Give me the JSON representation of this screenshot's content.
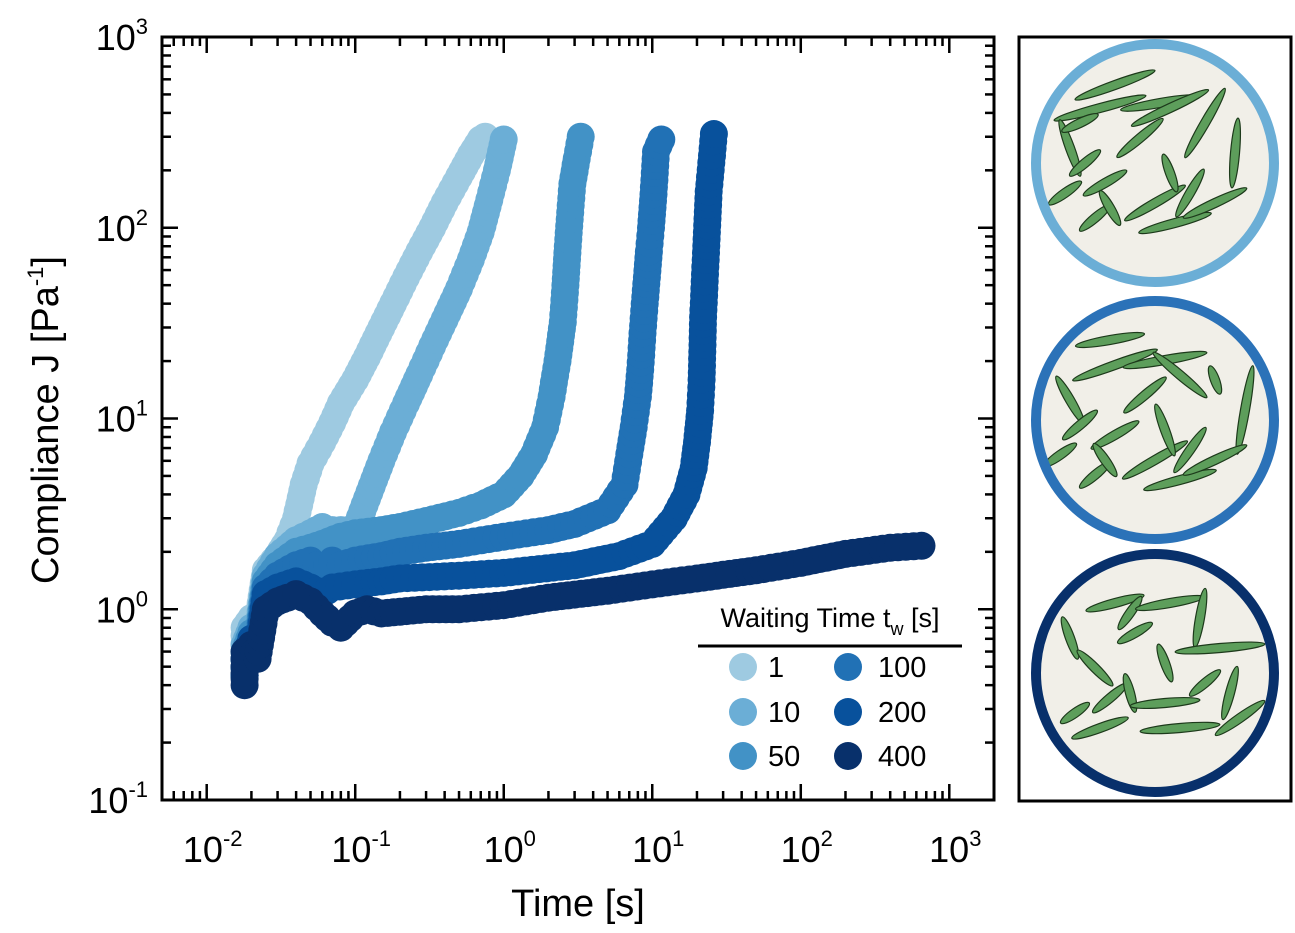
{
  "chart_data": {
    "type": "scatter",
    "xlabel": "Time [s]",
    "ylabel_main": "Compliance J [Pa",
    "ylabel_sup": "-1",
    "ylabel_close": "]",
    "xscale": "log",
    "yscale": "log",
    "xlim": [
      0.005,
      2000
    ],
    "ylim": [
      0.1,
      1000
    ],
    "x_ticks": [
      {
        "value": 0.01,
        "base": "10",
        "exp": "-2"
      },
      {
        "value": 0.1,
        "base": "10",
        "exp": "-1"
      },
      {
        "value": 1,
        "base": "10",
        "exp": "0"
      },
      {
        "value": 10,
        "base": "10",
        "exp": "1"
      },
      {
        "value": 100,
        "base": "10",
        "exp": "2"
      },
      {
        "value": 1000,
        "base": "10",
        "exp": "3"
      }
    ],
    "y_ticks": [
      {
        "value": 0.1,
        "base": "10",
        "exp": "-1"
      },
      {
        "value": 1,
        "base": "10",
        "exp": "0"
      },
      {
        "value": 10,
        "base": "10",
        "exp": "1"
      },
      {
        "value": 100,
        "base": "10",
        "exp": "2"
      },
      {
        "value": 1000,
        "base": "10",
        "exp": "3"
      }
    ],
    "legend": {
      "title_main": "Waiting Time t",
      "title_sub": "w",
      "title_end": " [s]",
      "position": "lower-right"
    },
    "series": [
      {
        "name": "1",
        "color": "#9ecae1",
        "points": [
          [
            0.018,
            0.45
          ],
          [
            0.018,
            0.6
          ],
          [
            0.018,
            0.8
          ],
          [
            0.02,
            0.9
          ],
          [
            0.022,
            0.85
          ],
          [
            0.025,
            1.6
          ],
          [
            0.03,
            1.9
          ],
          [
            0.035,
            2.3
          ],
          [
            0.04,
            3.0
          ],
          [
            0.045,
            4.5
          ],
          [
            0.05,
            5.8
          ],
          [
            0.06,
            7.5
          ],
          [
            0.07,
            9.5
          ],
          [
            0.08,
            12
          ],
          [
            0.1,
            16
          ],
          [
            0.12,
            21
          ],
          [
            0.15,
            30
          ],
          [
            0.18,
            40
          ],
          [
            0.22,
            55
          ],
          [
            0.27,
            75
          ],
          [
            0.33,
            100
          ],
          [
            0.4,
            135
          ],
          [
            0.5,
            185
          ],
          [
            0.6,
            240
          ],
          [
            0.7,
            290
          ],
          [
            0.75,
            300
          ]
        ]
      },
      {
        "name": "10",
        "color": "#6baed6",
        "points": [
          [
            0.018,
            0.45
          ],
          [
            0.018,
            0.65
          ],
          [
            0.02,
            0.8
          ],
          [
            0.022,
            0.75
          ],
          [
            0.025,
            1.5
          ],
          [
            0.03,
            1.9
          ],
          [
            0.035,
            2.1
          ],
          [
            0.04,
            2.3
          ],
          [
            0.05,
            2.5
          ],
          [
            0.06,
            2.7
          ],
          [
            0.07,
            2.6
          ],
          [
            0.08,
            2.6
          ],
          [
            0.1,
            2.6
          ],
          [
            0.12,
            3.8
          ],
          [
            0.15,
            6
          ],
          [
            0.18,
            8.5
          ],
          [
            0.22,
            12
          ],
          [
            0.27,
            17
          ],
          [
            0.33,
            24
          ],
          [
            0.4,
            33
          ],
          [
            0.5,
            48
          ],
          [
            0.6,
            68
          ],
          [
            0.7,
            95
          ],
          [
            0.8,
            140
          ],
          [
            0.9,
            200
          ],
          [
            1.0,
            290
          ]
        ]
      },
      {
        "name": "50",
        "color": "#4292c6",
        "points": [
          [
            0.018,
            0.45
          ],
          [
            0.018,
            0.6
          ],
          [
            0.02,
            0.75
          ],
          [
            0.022,
            0.7
          ],
          [
            0.025,
            1.4
          ],
          [
            0.03,
            1.7
          ],
          [
            0.04,
            2.0
          ],
          [
            0.05,
            2.1
          ],
          [
            0.06,
            2.2
          ],
          [
            0.08,
            2.4
          ],
          [
            0.1,
            2.5
          ],
          [
            0.15,
            2.6
          ],
          [
            0.2,
            2.7
          ],
          [
            0.3,
            2.9
          ],
          [
            0.5,
            3.2
          ],
          [
            0.7,
            3.5
          ],
          [
            1.0,
            4.0
          ],
          [
            1.3,
            5.0
          ],
          [
            1.6,
            6.5
          ],
          [
            1.9,
            9
          ],
          [
            2.1,
            13
          ],
          [
            2.3,
            20
          ],
          [
            2.5,
            32
          ],
          [
            2.6,
            50
          ],
          [
            2.7,
            80
          ],
          [
            2.8,
            120
          ],
          [
            2.9,
            170
          ],
          [
            3.1,
            230
          ],
          [
            3.3,
            300
          ]
        ]
      },
      {
        "name": "100",
        "color": "#2171b5",
        "points": [
          [
            0.018,
            0.45
          ],
          [
            0.018,
            0.55
          ],
          [
            0.02,
            0.7
          ],
          [
            0.022,
            0.65
          ],
          [
            0.025,
            1.3
          ],
          [
            0.03,
            1.5
          ],
          [
            0.04,
            1.7
          ],
          [
            0.05,
            1.8
          ],
          [
            0.06,
            1.6
          ],
          [
            0.07,
            1.8
          ],
          [
            0.08,
            1.7
          ],
          [
            0.1,
            1.8
          ],
          [
            0.15,
            1.9
          ],
          [
            0.2,
            2.0
          ],
          [
            0.3,
            2.1
          ],
          [
            0.5,
            2.2
          ],
          [
            1.0,
            2.4
          ],
          [
            2.0,
            2.6
          ],
          [
            3.0,
            2.8
          ],
          [
            5.0,
            3.3
          ],
          [
            6.5,
            4.5
          ],
          [
            7.0,
            6.5
          ],
          [
            7.5,
            9
          ],
          [
            8.0,
            13
          ],
          [
            8.3,
            18
          ],
          [
            8.6,
            28
          ],
          [
            8.9,
            40
          ],
          [
            9.2,
            55
          ],
          [
            9.5,
            75
          ],
          [
            9.8,
            100
          ],
          [
            10.2,
            150
          ],
          [
            10.6,
            250
          ],
          [
            11.5,
            290
          ]
        ]
      },
      {
        "name": "200",
        "color": "#08519c",
        "points": [
          [
            0.018,
            0.45
          ],
          [
            0.018,
            0.55
          ],
          [
            0.02,
            0.7
          ],
          [
            0.022,
            0.6
          ],
          [
            0.025,
            1.2
          ],
          [
            0.03,
            1.3
          ],
          [
            0.04,
            1.4
          ],
          [
            0.05,
            1.3
          ],
          [
            0.06,
            1.2
          ],
          [
            0.07,
            1.3
          ],
          [
            0.1,
            1.35
          ],
          [
            0.15,
            1.4
          ],
          [
            0.2,
            1.45
          ],
          [
            0.5,
            1.5
          ],
          [
            1.0,
            1.55
          ],
          [
            3.0,
            1.7
          ],
          [
            6.0,
            1.9
          ],
          [
            10.0,
            2.2
          ],
          [
            14.0,
            3.0
          ],
          [
            17.0,
            4.0
          ],
          [
            19.0,
            5.5
          ],
          [
            20.0,
            7.5
          ],
          [
            21.0,
            11
          ],
          [
            21.5,
            16
          ],
          [
            22.0,
            34
          ],
          [
            23.0,
            74
          ],
          [
            24.0,
            155
          ],
          [
            26.0,
            310
          ]
        ]
      },
      {
        "name": "400",
        "color": "#08306b",
        "points": [
          [
            0.018,
            0.4
          ],
          [
            0.018,
            0.5
          ],
          [
            0.018,
            0.6
          ],
          [
            0.02,
            0.65
          ],
          [
            0.022,
            0.55
          ],
          [
            0.025,
            1.0
          ],
          [
            0.03,
            1.1
          ],
          [
            0.035,
            1.15
          ],
          [
            0.04,
            1.2
          ],
          [
            0.05,
            1.1
          ],
          [
            0.06,
            0.95
          ],
          [
            0.07,
            0.85
          ],
          [
            0.08,
            0.8
          ],
          [
            0.1,
            0.95
          ],
          [
            0.12,
            1.0
          ],
          [
            0.15,
            0.95
          ],
          [
            0.2,
            0.97
          ],
          [
            0.3,
            1.0
          ],
          [
            0.5,
            1.0
          ],
          [
            1.0,
            1.05
          ],
          [
            2.0,
            1.15
          ],
          [
            5.0,
            1.25
          ],
          [
            10.0,
            1.35
          ],
          [
            20.0,
            1.45
          ],
          [
            50.0,
            1.6
          ],
          [
            100.0,
            1.75
          ],
          [
            200.0,
            1.95
          ],
          [
            400.0,
            2.1
          ],
          [
            650.0,
            2.15
          ]
        ]
      }
    ]
  },
  "schematic": {
    "panels": [
      {
        "name": "waiting-time-short",
        "ring_color": "#6baed6"
      },
      {
        "name": "waiting-time-medium",
        "ring_color": "#2b72b8"
      },
      {
        "name": "waiting-time-long",
        "ring_color": "#08306b"
      }
    ],
    "fill_color": "#f1efe8",
    "rod_color": "#5d9e5b"
  }
}
